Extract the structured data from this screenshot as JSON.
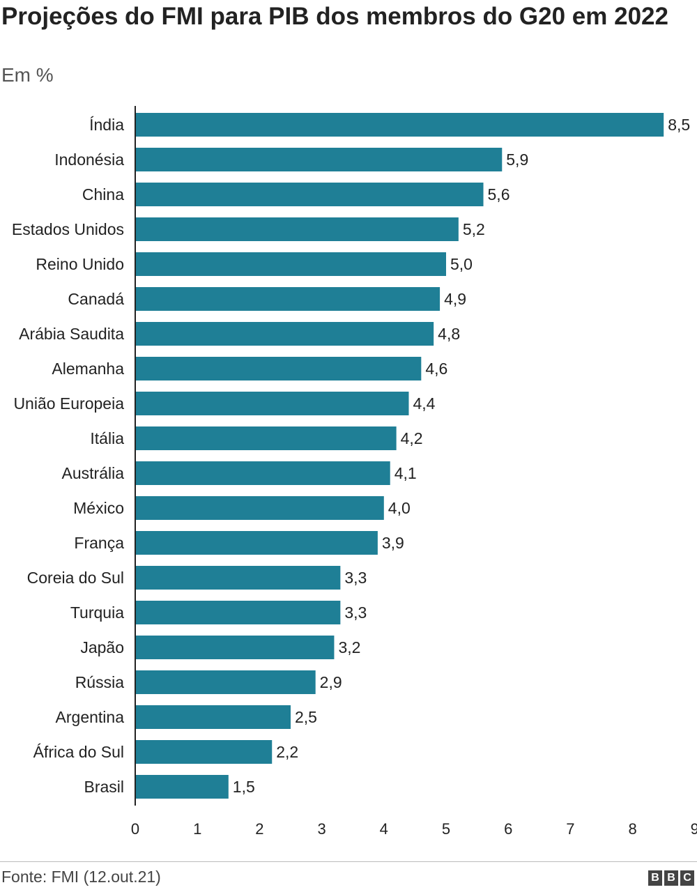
{
  "chart_data": {
    "type": "bar",
    "orientation": "horizontal",
    "title": "Projeções do FMI para PIB dos membros do G20 em 2022",
    "subtitle": "Em %",
    "categories": [
      "Índia",
      "Indonésia",
      "China",
      "Estados Unidos",
      "Reino Unido",
      "Canadá",
      "Arábia Saudita",
      "Alemanha",
      "União Europeia",
      "Itália",
      "Austrália",
      "México",
      "França",
      "Coreia do Sul",
      "Turquia",
      "Japão",
      "Rússia",
      "Argentina",
      "África do Sul",
      "Brasil"
    ],
    "values": [
      8.5,
      5.9,
      5.6,
      5.2,
      5.0,
      4.9,
      4.8,
      4.6,
      4.4,
      4.2,
      4.1,
      4.0,
      3.9,
      3.3,
      3.3,
      3.2,
      2.9,
      2.5,
      2.2,
      1.5
    ],
    "value_labels": [
      "8,5",
      "5,9",
      "5,6",
      "5,2",
      "5,0",
      "4,9",
      "4,8",
      "4,6",
      "4,4",
      "4,2",
      "4,1",
      "4,0",
      "3,9",
      "3,3",
      "3,3",
      "3,2",
      "2,9",
      "2,5",
      "2,2",
      "1,5"
    ],
    "xlim": [
      0,
      9
    ],
    "xticks": [
      "0",
      "1",
      "2",
      "3",
      "4",
      "5",
      "6",
      "7",
      "8",
      "9"
    ],
    "grid": false,
    "bar_color": "#1f7f96"
  },
  "footer": {
    "source": "Fonte: FMI (12.out.21)",
    "logo_letters": [
      "B",
      "B",
      "C"
    ]
  }
}
